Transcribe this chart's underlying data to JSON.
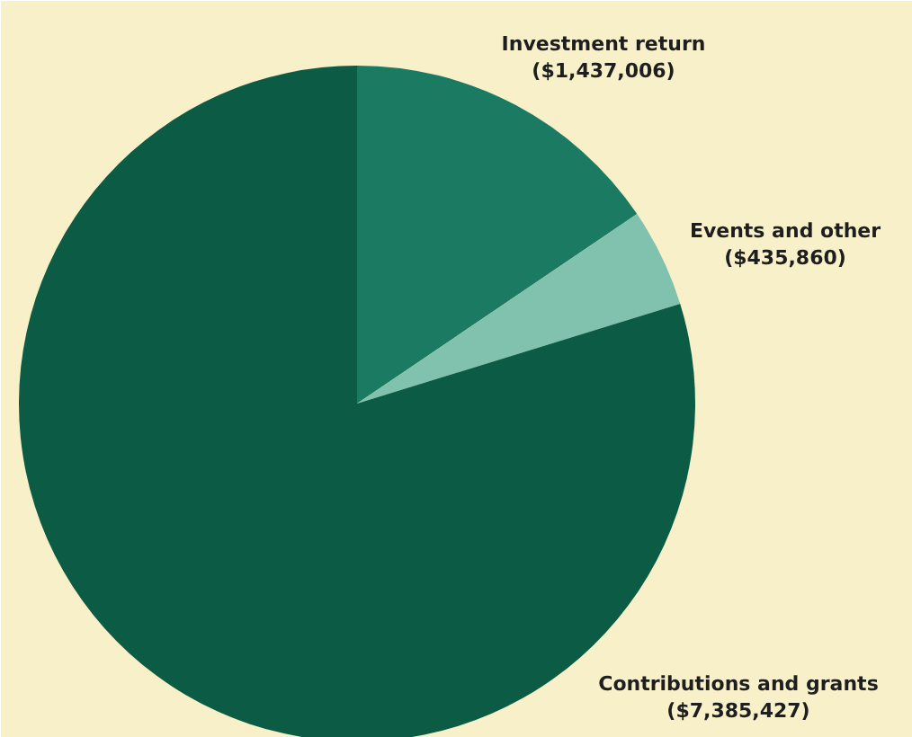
{
  "chart_data": {
    "type": "pie",
    "categories": [
      "Investment return",
      "Events and other",
      "Contributions and grants"
    ],
    "values": [
      1437006,
      435860,
      7385427
    ],
    "value_labels": [
      "($1,437,006)",
      "($435,860)",
      "($7,385,427)"
    ],
    "colors": [
      "#1b7a62",
      "#80c2ae",
      "#0b5b45"
    ]
  }
}
